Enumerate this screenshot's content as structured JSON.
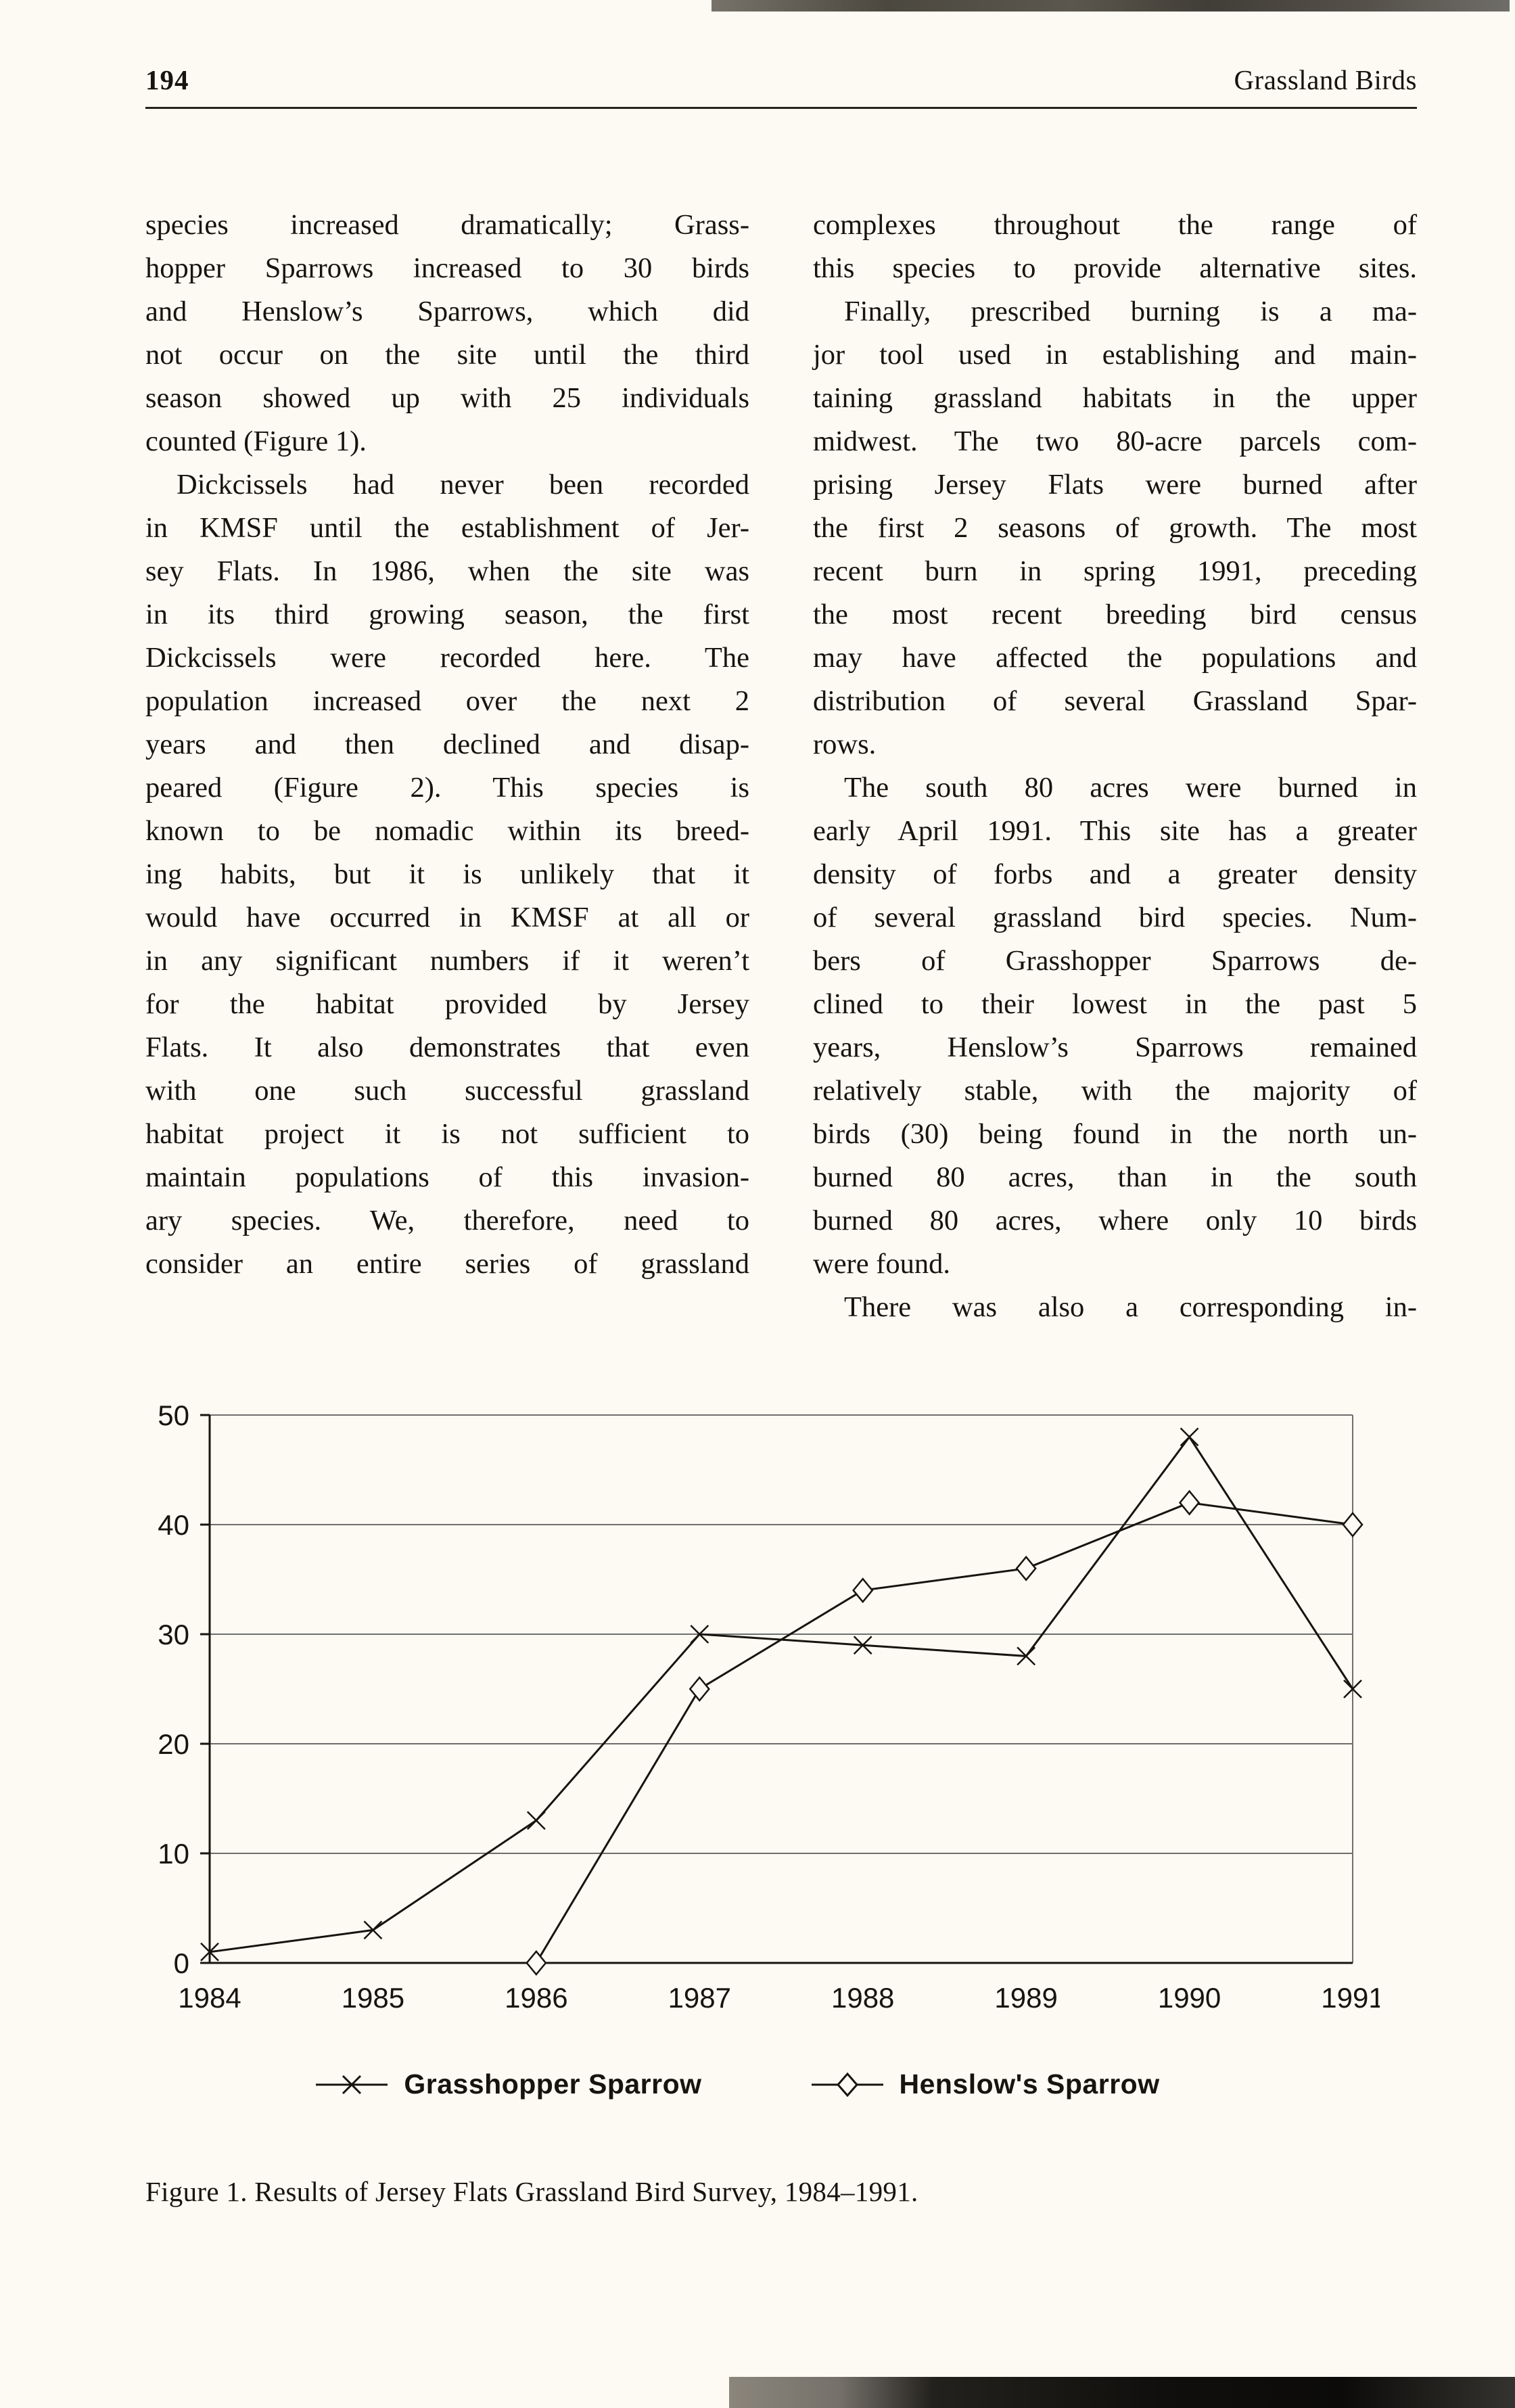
{
  "colors": {
    "paper": "#fcfaf2",
    "ink": "#17130e"
  },
  "page": {
    "number": "194",
    "running_head": "Grassland Birds"
  },
  "body": {
    "left_column": [
      {
        "indent": false,
        "justify_last": false,
        "lines": [
          "species increased dramatically; Grass-",
          "hopper Sparrows increased to 30 birds",
          "and Henslow’s Sparrows, which did",
          "not occur on the site until the third",
          "season showed up with 25 individuals",
          "counted (Figure 1)."
        ]
      },
      {
        "indent": true,
        "justify_last": true,
        "lines": [
          "Dickcissels had never been recorded",
          "in KMSF until the establishment of Jer-",
          "sey Flats. In 1986, when the site was",
          "in its third growing season, the first",
          "Dickcissels were recorded here. The",
          "population increased over the next 2",
          "years and then declined and disap-",
          "peared (Figure 2). This species is",
          "known to be nomadic within its breed-",
          "ing habits, but it is unlikely that it",
          "would have occurred in KMSF at all or",
          "in any significant numbers if it weren’t",
          "for the habitat provided by Jersey",
          "Flats. It also demonstrates that even",
          "with one such successful grassland",
          "habitat project it is not sufficient to",
          "maintain populations of this invasion-",
          "ary species. We, therefore, need to",
          "consider an entire series of grassland"
        ]
      }
    ],
    "right_column": [
      {
        "indent": false,
        "justify_last": true,
        "lines": [
          "complexes throughout the range of",
          "this species to provide alternative sites."
        ]
      },
      {
        "indent": true,
        "justify_last": false,
        "lines": [
          "Finally, prescribed burning is a ma-",
          "jor tool used in establishing and main-",
          "taining grassland habitats in the upper",
          "midwest. The two 80-acre parcels com-",
          "prising Jersey Flats were burned after",
          "the first 2 seasons of growth. The most",
          "recent burn in spring 1991, preceding",
          "the most recent breeding bird census",
          "may have affected the populations and",
          "distribution of several Grassland Spar-",
          "rows."
        ]
      },
      {
        "indent": true,
        "justify_last": false,
        "lines": [
          "The south 80 acres were burned in",
          "early April 1991. This site has a greater",
          "density of forbs and a greater density",
          "of several grassland bird species. Num-",
          "bers of Grasshopper Sparrows de-",
          "clined to their lowest in the past 5",
          "years, Henslow’s Sparrows remained",
          "relatively stable, with the majority of",
          "birds (30) being found in the north un-",
          "burned 80 acres, than in the south",
          "burned 80 acres, where only 10 birds",
          "were found."
        ]
      },
      {
        "indent": true,
        "justify_last": true,
        "lines": [
          "There was also a corresponding in-"
        ]
      }
    ]
  },
  "figure": {
    "caption": "Figure 1. Results of Jersey Flats Grassland Bird Survey, 1984–1991."
  },
  "chart_data": {
    "type": "line",
    "title": "",
    "xlabel": "",
    "ylabel": "",
    "x": [
      1984,
      1985,
      1986,
      1987,
      1988,
      1989,
      1990,
      1991
    ],
    "ylim": [
      0,
      50
    ],
    "yticks": [
      0,
      10,
      20,
      30,
      40,
      50
    ],
    "grid": "horizontal",
    "legend_position": "below",
    "series": [
      {
        "name": "Grasshopper Sparrow",
        "marker": "x",
        "values": [
          1,
          3,
          13,
          30,
          29,
          28,
          48,
          25
        ]
      },
      {
        "name": "Henslow's Sparrow",
        "marker": "diamond",
        "values": [
          null,
          null,
          0,
          25,
          34,
          36,
          42,
          40
        ]
      }
    ]
  }
}
